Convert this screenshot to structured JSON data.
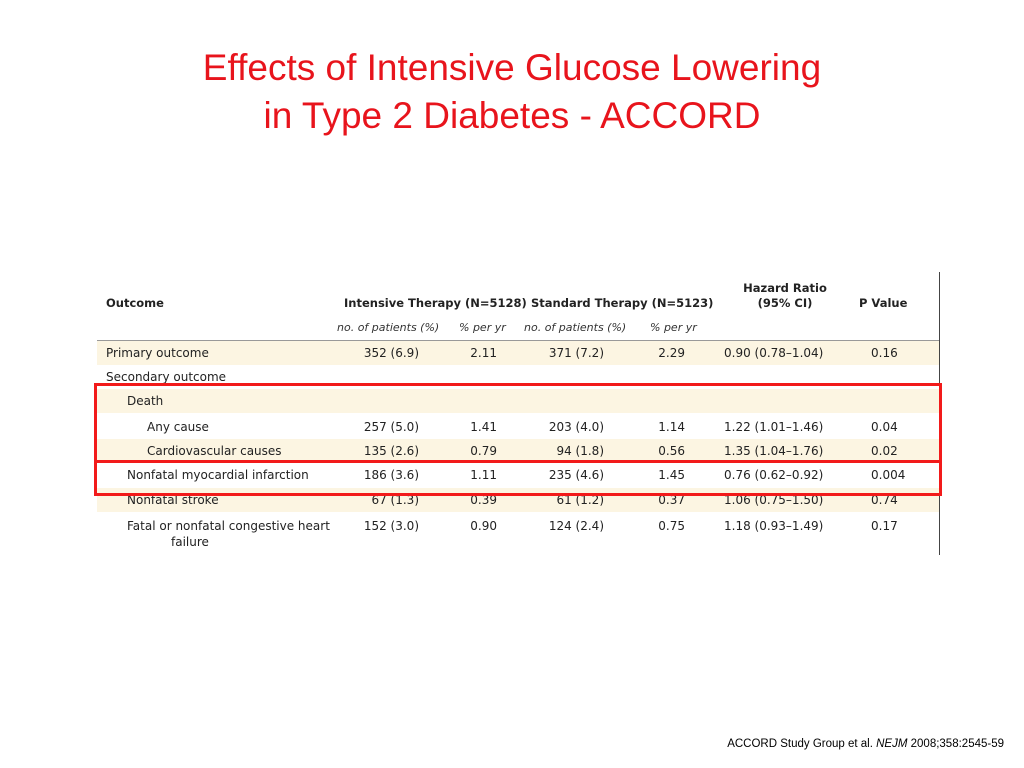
{
  "title": {
    "line1": "Effects of Intensive Glucose Lowering",
    "line2": "in Type 2 Diabetes - ACCORD"
  },
  "table": {
    "headers": {
      "outcome": "Outcome",
      "intensive": "Intensive Therapy (N=5128)",
      "standard": "Standard Therapy (N=5123)",
      "hazard_line1": "Hazard Ratio",
      "hazard_line2": "(95% CI)",
      "pvalue": "P Value"
    },
    "subheaders": {
      "int_patients": "no. of patients (%)",
      "int_rate": "% per yr",
      "std_patients": "no. of patients (%)",
      "std_rate": "% per yr"
    },
    "rows": [
      {
        "label": "Primary outcome",
        "int_n": "352 (6.9)",
        "int_r": "2.11",
        "std_n": "371 (7.2)",
        "std_r": "2.29",
        "hr": "0.90 (0.78–1.04)",
        "p": "0.16"
      },
      {
        "label": "Secondary outcome",
        "int_n": "",
        "int_r": "",
        "std_n": "",
        "std_r": "",
        "hr": "",
        "p": ""
      },
      {
        "label": "Death",
        "int_n": "",
        "int_r": "",
        "std_n": "",
        "std_r": "",
        "hr": "",
        "p": ""
      },
      {
        "label": "Any cause",
        "int_n": "257 (5.0)",
        "int_r": "1.41",
        "std_n": "203 (4.0)",
        "std_r": "1.14",
        "hr": "1.22 (1.01–1.46)",
        "p": "0.04"
      },
      {
        "label": "Cardiovascular causes",
        "int_n": "135 (2.6)",
        "int_r": "0.79",
        "std_n": "94 (1.8)",
        "std_r": "0.56",
        "hr": "1.35 (1.04–1.76)",
        "p": "0.02"
      },
      {
        "label": "Nonfatal myocardial infarction",
        "int_n": "186 (3.6)",
        "int_r": "1.11",
        "std_n": "235 (4.6)",
        "std_r": "1.45",
        "hr": "0.76 (0.62–0.92)",
        "p": "0.004"
      },
      {
        "label": "Nonfatal stroke",
        "int_n": "67 (1.3)",
        "int_r": "0.39",
        "std_n": "61 (1.2)",
        "std_r": "0.37",
        "hr": "1.06 (0.75–1.50)",
        "p": "0.74"
      },
      {
        "label": "Fatal or nonfatal congestive heart",
        "label2": "failure",
        "int_n": "152 (3.0)",
        "int_r": "0.90",
        "std_n": "124 (2.4)",
        "std_r": "0.75",
        "hr": "1.18 (0.93–1.49)",
        "p": "0.17"
      }
    ]
  },
  "citation": {
    "authors": "ACCORD Study Group  et al. ",
    "journal": "NEJM",
    "ref": " 2008;358:2545-59"
  },
  "colors": {
    "title": "#e8141c",
    "highlight_box": "#f21a1a",
    "row_shade": "#fcf5e2"
  }
}
